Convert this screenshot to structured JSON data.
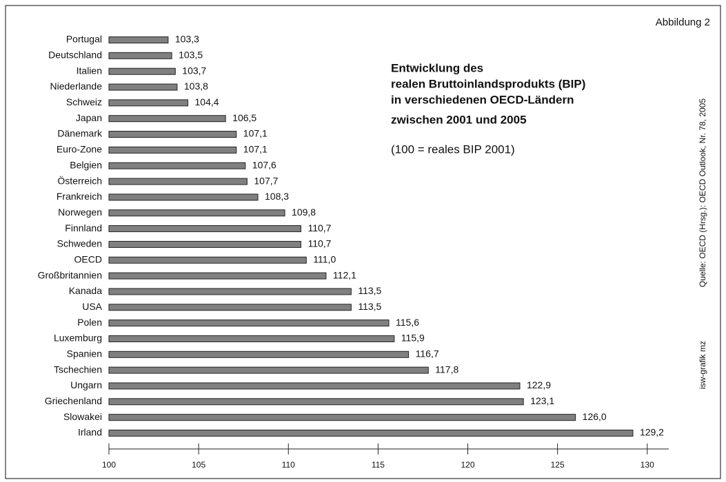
{
  "chart_data": {
    "type": "bar",
    "orientation": "horizontal",
    "title": [
      "Entwicklung des",
      "realen Bruttoinlandsprodukts (BIP)",
      "in verschiedenen OECD-Ländern",
      "zwischen 2001 und 2005"
    ],
    "subtitle": "(100 = reales BIP 2001)",
    "annotations": [
      "Abbildung 2",
      "Quelle: OECD (Hrsg.): OECD Outlook, Nr. 78, 2005",
      "isw-grafik mz"
    ],
    "categories": [
      "Portugal",
      "Deutschland",
      "Italien",
      "Niederlande",
      "Schweiz",
      "Japan",
      "Dänemark",
      "Euro-Zone",
      "Belgien",
      "Österreich",
      "Frankreich",
      "Norwegen",
      "Finnland",
      "Schweden",
      "OECD",
      "Großbritannien",
      "Kanada",
      "USA",
      "Polen",
      "Luxemburg",
      "Spanien",
      "Tschechien",
      "Ungarn",
      "Griechenland",
      "Slowakei",
      "Irland"
    ],
    "values": [
      103.3,
      103.5,
      103.7,
      103.8,
      104.4,
      106.5,
      107.1,
      107.1,
      107.6,
      107.7,
      108.3,
      109.8,
      110.7,
      110.7,
      111.0,
      112.1,
      113.5,
      113.5,
      115.6,
      115.9,
      116.7,
      117.8,
      122.9,
      123.1,
      126.0,
      129.2
    ],
    "value_labels": [
      "103,3",
      "103,5",
      "103,7",
      "103,8",
      "104,4",
      "106,5",
      "107,1",
      "107,1",
      "107,6",
      "107,7",
      "108,3",
      "109,8",
      "110,7",
      "110,7",
      "111,0",
      "112,1",
      "113,5",
      "113,5",
      "115,6",
      "115,9",
      "116,7",
      "117,8",
      "122,9",
      "123,1",
      "126,0",
      "129,2"
    ],
    "color": "#808080",
    "xlim": [
      100,
      131.2
    ],
    "xticks": [
      100,
      105,
      110,
      115,
      120,
      125,
      130
    ]
  }
}
